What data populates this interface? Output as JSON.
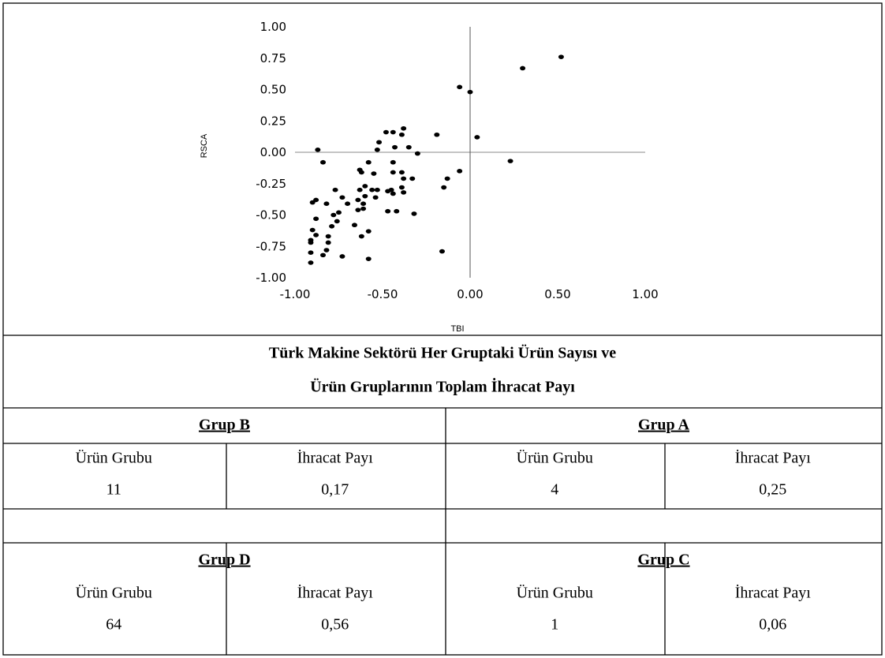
{
  "chart_data": {
    "type": "scatter",
    "x_label": "TBI",
    "y_label": "RSCA",
    "color": "#000000",
    "xlim": [
      -1,
      1
    ],
    "ylim": [
      -1,
      1
    ],
    "xticks": [
      {
        "value": -1,
        "label": "-1.00"
      },
      {
        "value": -0.5,
        "label": "-0.50"
      },
      {
        "value": 0,
        "label": "0.00"
      },
      {
        "value": 0.5,
        "label": "0.50"
      },
      {
        "value": 1,
        "label": "1.00"
      }
    ],
    "yticks": [
      {
        "value": 1,
        "label": "1.00"
      },
      {
        "value": 0.75,
        "label": "0.75"
      },
      {
        "value": 0.5,
        "label": "0.50"
      },
      {
        "value": 0.25,
        "label": "0.25"
      },
      {
        "value": 0,
        "label": "0.00"
      },
      {
        "value": -0.25,
        "label": "-0.25"
      },
      {
        "value": -0.5,
        "label": "-0.50"
      },
      {
        "value": -0.75,
        "label": "-0.75"
      },
      {
        "value": -1,
        "label": "-1.00"
      }
    ],
    "x": [
      0.52,
      0.3,
      -0.06,
      0,
      0.04,
      0.23,
      -0.19,
      -0.06,
      -0.13,
      -0.15,
      -0.16,
      -0.3,
      -0.35,
      -0.38,
      -0.39,
      -0.44,
      -0.48,
      -0.52,
      -0.53,
      -0.43,
      -0.44,
      -0.44,
      -0.39,
      -0.38,
      -0.33,
      -0.39,
      -0.38,
      -0.45,
      -0.47,
      -0.44,
      -0.53,
      -0.56,
      -0.58,
      -0.55,
      -0.63,
      -0.62,
      -0.6,
      -0.63,
      -0.6,
      -0.64,
      -0.61,
      -0.64,
      -0.61,
      -0.54,
      -0.47,
      -0.42,
      -0.32,
      -0.66,
      -0.58,
      -0.62,
      -0.58,
      -0.73,
      -0.7,
      -0.73,
      -0.77,
      -0.75,
      -0.78,
      -0.76,
      -0.79,
      -0.82,
      -0.88,
      -0.9,
      -0.88,
      -0.81,
      -0.81,
      -0.82,
      -0.84,
      -0.88,
      -0.9,
      -0.91,
      -0.91,
      -0.91,
      -0.91,
      -0.87,
      -0.84
    ],
    "values": [
      0.76,
      0.67,
      0.52,
      0.48,
      0.12,
      -0.07,
      0.14,
      -0.15,
      -0.21,
      -0.28,
      -0.79,
      -0.01,
      0.04,
      0.19,
      0.14,
      0.16,
      0.16,
      0.08,
      0.02,
      0.04,
      -0.08,
      -0.16,
      -0.16,
      -0.21,
      -0.21,
      -0.28,
      -0.32,
      -0.3,
      -0.31,
      -0.33,
      -0.3,
      -0.3,
      -0.08,
      -0.17,
      -0.14,
      -0.16,
      -0.27,
      -0.3,
      -0.35,
      -0.38,
      -0.41,
      -0.46,
      -0.45,
      -0.36,
      -0.47,
      -0.47,
      -0.49,
      -0.58,
      -0.63,
      -0.67,
      -0.85,
      -0.83,
      -0.41,
      -0.36,
      -0.3,
      -0.48,
      -0.5,
      -0.55,
      -0.59,
      -0.41,
      -0.38,
      -0.4,
      -0.53,
      -0.67,
      -0.72,
      -0.78,
      -0.82,
      -0.66,
      -0.62,
      -0.7,
      -0.72,
      -0.8,
      -0.88,
      0.02,
      -0.08
    ]
  },
  "table": {
    "title": [
      "Türk Makine Sektörü Her Gruptaki Ürün Sayısı ve",
      "Ürün Gruplarının Toplam İhracat Payı"
    ],
    "groups": [
      {
        "name": "Grup B",
        "headers": [
          "Ürün Grubu",
          "İhracat Payı"
        ],
        "values": [
          "11",
          "0,17"
        ]
      },
      {
        "name": "Grup A",
        "headers": [
          "Ürün Grubu",
          "İhracat Payı"
        ],
        "values": [
          "4",
          "0,25"
        ]
      },
      {
        "name": "Grup D",
        "headers": [
          "Ürün Grubu",
          "İhracat Payı"
        ],
        "values": [
          "64",
          "0,56"
        ]
      },
      {
        "name": "Grup C",
        "headers": [
          "Ürün Grubu",
          "İhracat Payı"
        ],
        "values": [
          "1",
          "0,06"
        ]
      }
    ]
  }
}
